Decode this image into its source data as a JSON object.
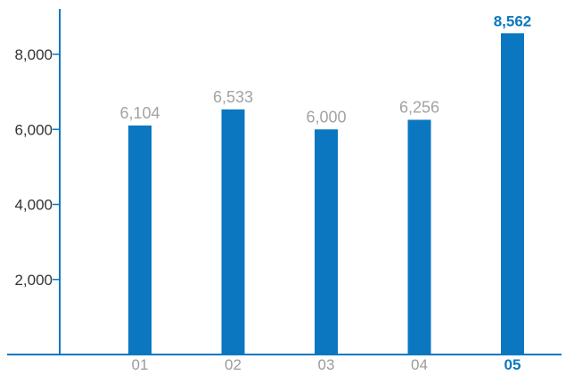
{
  "chart_data": {
    "type": "bar",
    "title": "",
    "xlabel": "",
    "ylabel": "",
    "categories": [
      "01",
      "02",
      "03",
      "04",
      "05"
    ],
    "values": [
      6104,
      6533,
      6000,
      6256,
      8562
    ],
    "data_labels": [
      "6,104",
      "6,533",
      "6,000",
      "6,256",
      "8,562"
    ],
    "highlight_index": 4,
    "ylim": [
      0,
      9000
    ],
    "yticks": [
      2000,
      4000,
      6000,
      8000
    ],
    "ytick_labels": [
      "2,000",
      "4,000",
      "6,000",
      "8,000"
    ],
    "grid": false,
    "legend": "none",
    "colors": {
      "bar": "#0b77c0",
      "axis": "#0b77c0",
      "value_label": "#a3a3a3",
      "category_label": "#9b9b9b",
      "highlight": "#0b77c0",
      "tick_label": "#333333"
    }
  }
}
